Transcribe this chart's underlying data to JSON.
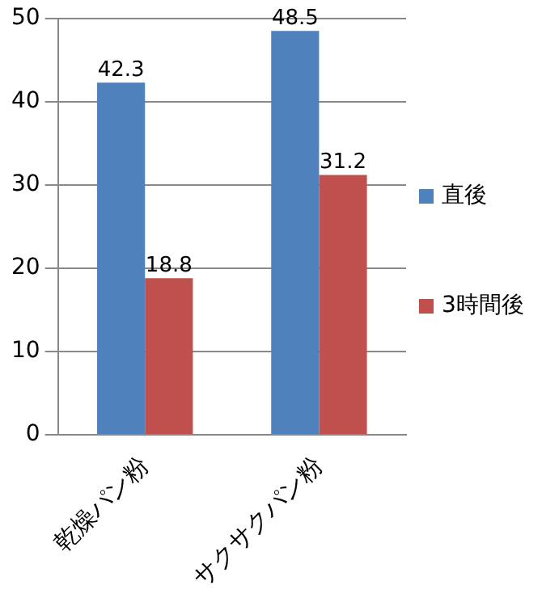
{
  "chart_data": {
    "type": "bar",
    "categories": [
      "乾燥パン粉",
      "サクサクパン粉"
    ],
    "series": [
      {
        "name": "直後",
        "color": "#4f81bd",
        "values": [
          42.3,
          48.5
        ]
      },
      {
        "name": "3時間後",
        "color": "#c0504d",
        "values": [
          18.8,
          31.2
        ]
      }
    ],
    "ylim": [
      0,
      50
    ],
    "yticks": [
      0,
      10,
      20,
      30,
      40,
      50
    ],
    "grid": "y",
    "legend": "right",
    "data_labels": true
  }
}
